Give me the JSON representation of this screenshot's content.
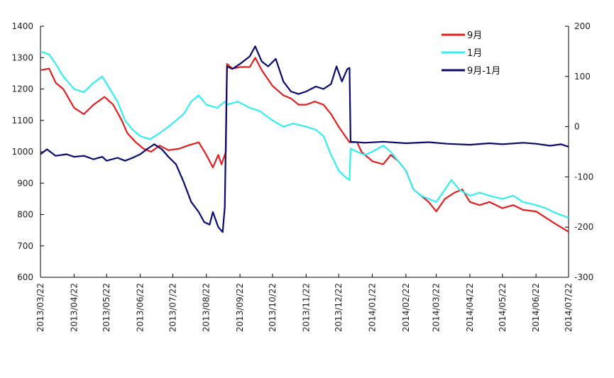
{
  "chart_data": {
    "type": "line",
    "left_axis": {
      "min": 600,
      "max": 1400,
      "ticks": [
        600,
        700,
        800,
        900,
        1000,
        1100,
        1200,
        1300,
        1400
      ]
    },
    "right_axis": {
      "min": -300,
      "max": 200,
      "ticks": [
        -300,
        -200,
        -100,
        0,
        100,
        200
      ]
    },
    "x_range": [
      "2013/03/22",
      "2014/07/22"
    ],
    "x_ticks": [
      "2013/03/22",
      "2013/04/22",
      "2013/05/22",
      "2013/06/22",
      "2013/07/22",
      "2013/08/22",
      "2013/09/22",
      "2013/10/22",
      "2013/11/22",
      "2013/12/22",
      "2014/01/22",
      "2014/02/22",
      "2014/03/22",
      "2014/04/22",
      "2014/05/22",
      "2014/06/22",
      "2014/07/22"
    ],
    "legend_position": "top-right",
    "grid": false,
    "series": [
      {
        "name": "9月",
        "color": "#e02020",
        "axis": "left",
        "points": [
          [
            "2013/03/22",
            1260
          ],
          [
            "2013/03/30",
            1265
          ],
          [
            "2013/04/05",
            1220
          ],
          [
            "2013/04/12",
            1200
          ],
          [
            "2013/04/22",
            1140
          ],
          [
            "2013/05/01",
            1120
          ],
          [
            "2013/05/10",
            1150
          ],
          [
            "2013/05/20",
            1175
          ],
          [
            "2013/05/28",
            1150
          ],
          [
            "2013/06/05",
            1100
          ],
          [
            "2013/06/10",
            1060
          ],
          [
            "2013/06/18",
            1030
          ],
          [
            "2013/06/25",
            1010
          ],
          [
            "2013/07/02",
            1000
          ],
          [
            "2013/07/10",
            1020
          ],
          [
            "2013/07/18",
            1005
          ],
          [
            "2013/07/28",
            1010
          ],
          [
            "2013/08/05",
            1020
          ],
          [
            "2013/08/15",
            1030
          ],
          [
            "2013/08/22",
            990
          ],
          [
            "2013/08/28",
            950
          ],
          [
            "2013/09/02",
            990
          ],
          [
            "2013/09/05",
            960
          ],
          [
            "2013/09/09",
            1000
          ],
          [
            "2013/09/10",
            1280
          ],
          [
            "2013/09/15",
            1265
          ],
          [
            "2013/09/22",
            1270
          ],
          [
            "2013/10/01",
            1270
          ],
          [
            "2013/10/06",
            1300
          ],
          [
            "2013/10/12",
            1260
          ],
          [
            "2013/10/22",
            1210
          ],
          [
            "2013/11/01",
            1180
          ],
          [
            "2013/11/08",
            1170
          ],
          [
            "2013/11/15",
            1150
          ],
          [
            "2013/11/22",
            1150
          ],
          [
            "2013/11/30",
            1160
          ],
          [
            "2013/12/08",
            1150
          ],
          [
            "2013/12/15",
            1120
          ],
          [
            "2013/12/22",
            1080
          ],
          [
            "2014/01/01",
            1030
          ],
          [
            "2014/01/08",
            1030
          ],
          [
            "2014/01/12",
            1000
          ],
          [
            "2014/01/22",
            970
          ],
          [
            "2014/02/01",
            960
          ],
          [
            "2014/02/08",
            990
          ],
          [
            "2014/02/15",
            970
          ],
          [
            "2014/02/22",
            940
          ],
          [
            "2014/03/01",
            880
          ],
          [
            "2014/03/08",
            860
          ],
          [
            "2014/03/15",
            840
          ],
          [
            "2014/03/22",
            810
          ],
          [
            "2014/03/30",
            850
          ],
          [
            "2014/04/08",
            870
          ],
          [
            "2014/04/15",
            880
          ],
          [
            "2014/04/22",
            840
          ],
          [
            "2014/05/01",
            830
          ],
          [
            "2014/05/10",
            840
          ],
          [
            "2014/05/22",
            820
          ],
          [
            "2014/06/01",
            830
          ],
          [
            "2014/06/10",
            815
          ],
          [
            "2014/06/22",
            810
          ],
          [
            "2014/07/01",
            790
          ],
          [
            "2014/07/10",
            770
          ],
          [
            "2014/07/22",
            745
          ]
        ]
      },
      {
        "name": "1月",
        "color": "#33eeee",
        "axis": "left",
        "points": [
          [
            "2013/03/22",
            1320
          ],
          [
            "2013/03/30",
            1310
          ],
          [
            "2013/04/05",
            1280
          ],
          [
            "2013/04/12",
            1240
          ],
          [
            "2013/04/22",
            1200
          ],
          [
            "2013/05/01",
            1190
          ],
          [
            "2013/05/10",
            1220
          ],
          [
            "2013/05/18",
            1240
          ],
          [
            "2013/05/25",
            1200
          ],
          [
            "2013/06/01",
            1160
          ],
          [
            "2013/06/08",
            1100
          ],
          [
            "2013/06/15",
            1070
          ],
          [
            "2013/06/22",
            1050
          ],
          [
            "2013/07/01",
            1040
          ],
          [
            "2013/07/10",
            1060
          ],
          [
            "2013/07/18",
            1080
          ],
          [
            "2013/07/25",
            1100
          ],
          [
            "2013/08/01",
            1120
          ],
          [
            "2013/08/08",
            1160
          ],
          [
            "2013/08/15",
            1180
          ],
          [
            "2013/08/22",
            1150
          ],
          [
            "2013/09/01",
            1140
          ],
          [
            "2013/09/08",
            1160
          ],
          [
            "2013/09/10",
            1150
          ],
          [
            "2013/09/20",
            1160
          ],
          [
            "2013/10/01",
            1140
          ],
          [
            "2013/10/10",
            1130
          ],
          [
            "2013/10/22",
            1100
          ],
          [
            "2013/11/01",
            1080
          ],
          [
            "2013/11/10",
            1090
          ],
          [
            "2013/11/22",
            1080
          ],
          [
            "2013/12/01",
            1070
          ],
          [
            "2013/12/08",
            1050
          ],
          [
            "2013/12/15",
            990
          ],
          [
            "2013/12/22",
            940
          ],
          [
            "2013/12/28",
            920
          ],
          [
            "2014/01/01",
            910
          ],
          [
            "2014/01/02",
            1010
          ],
          [
            "2014/01/08",
            1000
          ],
          [
            "2014/01/15",
            990
          ],
          [
            "2014/01/22",
            1000
          ],
          [
            "2014/02/01",
            1020
          ],
          [
            "2014/02/08",
            1000
          ],
          [
            "2014/02/15",
            970
          ],
          [
            "2014/02/22",
            940
          ],
          [
            "2014/03/01",
            880
          ],
          [
            "2014/03/08",
            860
          ],
          [
            "2014/03/15",
            850
          ],
          [
            "2014/03/22",
            840
          ],
          [
            "2014/03/30",
            880
          ],
          [
            "2014/04/05",
            910
          ],
          [
            "2014/04/12",
            880
          ],
          [
            "2014/04/22",
            860
          ],
          [
            "2014/05/01",
            870
          ],
          [
            "2014/05/10",
            860
          ],
          [
            "2014/05/22",
            850
          ],
          [
            "2014/06/01",
            860
          ],
          [
            "2014/06/10",
            840
          ],
          [
            "2014/06/22",
            830
          ],
          [
            "2014/07/01",
            820
          ],
          [
            "2014/07/10",
            805
          ],
          [
            "2014/07/22",
            790
          ]
        ]
      },
      {
        "name": "9月-1月",
        "color": "#0a0a6e",
        "axis": "right",
        "points": [
          [
            "2013/03/22",
            -55
          ],
          [
            "2013/03/28",
            -45
          ],
          [
            "2013/04/05",
            -58
          ],
          [
            "2013/04/15",
            -55
          ],
          [
            "2013/04/22",
            -60
          ],
          [
            "2013/05/01",
            -58
          ],
          [
            "2013/05/10",
            -65
          ],
          [
            "2013/05/18",
            -60
          ],
          [
            "2013/05/22",
            -68
          ],
          [
            "2013/06/01",
            -62
          ],
          [
            "2013/06/08",
            -68
          ],
          [
            "2013/06/15",
            -62
          ],
          [
            "2013/06/22",
            -55
          ],
          [
            "2013/06/28",
            -45
          ],
          [
            "2013/07/05",
            -35
          ],
          [
            "2013/07/12",
            -45
          ],
          [
            "2013/07/18",
            -60
          ],
          [
            "2013/07/25",
            -75
          ],
          [
            "2013/08/01",
            -110
          ],
          [
            "2013/08/08",
            -150
          ],
          [
            "2013/08/15",
            -170
          ],
          [
            "2013/08/20",
            -190
          ],
          [
            "2013/08/25",
            -195
          ],
          [
            "2013/08/28",
            -170
          ],
          [
            "2013/09/02",
            -200
          ],
          [
            "2013/09/06",
            -210
          ],
          [
            "2013/09/08",
            -160
          ],
          [
            "2013/09/10",
            120
          ],
          [
            "2013/09/15",
            115
          ],
          [
            "2013/09/22",
            125
          ],
          [
            "2013/10/01",
            140
          ],
          [
            "2013/10/06",
            160
          ],
          [
            "2013/10/12",
            130
          ],
          [
            "2013/10/18",
            120
          ],
          [
            "2013/10/25",
            135
          ],
          [
            "2013/11/01",
            90
          ],
          [
            "2013/11/08",
            70
          ],
          [
            "2013/11/15",
            65
          ],
          [
            "2013/11/22",
            70
          ],
          [
            "2013/12/01",
            80
          ],
          [
            "2013/12/08",
            75
          ],
          [
            "2013/12/15",
            85
          ],
          [
            "2013/12/20",
            120
          ],
          [
            "2013/12/25",
            90
          ],
          [
            "2013/12/30",
            115
          ],
          [
            "2014/01/01",
            117
          ],
          [
            "2014/01/02",
            -30
          ],
          [
            "2014/01/15",
            -32
          ],
          [
            "2014/02/01",
            -30
          ],
          [
            "2014/02/22",
            -33
          ],
          [
            "2014/03/15",
            -31
          ],
          [
            "2014/04/01",
            -34
          ],
          [
            "2014/04/22",
            -36
          ],
          [
            "2014/05/10",
            -33
          ],
          [
            "2014/05/22",
            -35
          ],
          [
            "2014/06/10",
            -32
          ],
          [
            "2014/06/22",
            -34
          ],
          [
            "2014/07/05",
            -38
          ],
          [
            "2014/07/15",
            -35
          ],
          [
            "2014/07/22",
            -40
          ]
        ]
      }
    ]
  }
}
